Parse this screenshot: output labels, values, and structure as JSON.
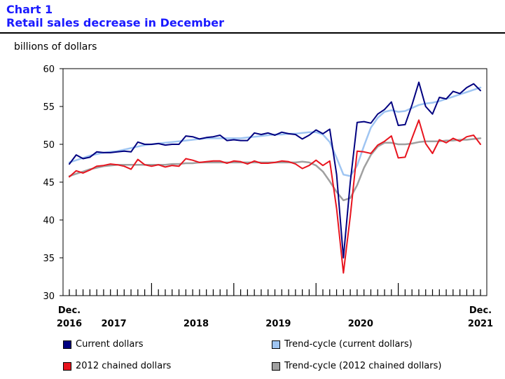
{
  "header": {
    "chart_number": "Chart 1",
    "title": "Retail sales decrease in December"
  },
  "chart_data": {
    "type": "line",
    "title": "Retail sales decrease in December",
    "ylabel": "billions of dollars",
    "xlabel": "",
    "ylim": [
      30,
      60
    ],
    "yticks": [
      30,
      35,
      40,
      45,
      50,
      55,
      60
    ],
    "grid": false,
    "legend_position": "bottom",
    "x_tick_labels": [
      {
        "line1": "Dec.",
        "line2": "2016",
        "month_index": 0
      },
      {
        "line1": "",
        "line2": "2017",
        "month_index": 6.5
      },
      {
        "line1": "",
        "line2": "2018",
        "month_index": 18.5
      },
      {
        "line1": "",
        "line2": "2019",
        "month_index": 30.5
      },
      {
        "line1": "",
        "line2": "2020",
        "month_index": 42.5
      },
      {
        "line1": "Dec.",
        "line2": "2021",
        "month_index": 60
      }
    ],
    "x_start": "2016-12",
    "x_end": "2021-12",
    "series": [
      {
        "name": "Current dollars",
        "color": "#000080",
        "width": 2,
        "values": [
          47.4,
          48.6,
          48.1,
          48.3,
          49.0,
          48.9,
          48.9,
          49.0,
          49.1,
          49.0,
          50.3,
          50.0,
          50.0,
          50.1,
          49.9,
          50.0,
          50.0,
          51.1,
          51.0,
          50.7,
          50.9,
          51.0,
          51.2,
          50.5,
          50.6,
          50.5,
          50.5,
          51.5,
          51.3,
          51.5,
          51.2,
          51.6,
          51.4,
          51.3,
          50.7,
          51.2,
          51.9,
          51.4,
          52.0,
          46.0,
          35.0,
          45.0,
          52.9,
          53.0,
          52.8,
          54.0,
          54.6,
          55.6,
          52.5,
          52.6,
          55.2,
          58.2,
          55.0,
          54.0,
          56.2,
          56.0,
          57.0,
          56.7,
          57.5,
          58.0,
          57.1
        ]
      },
      {
        "name": "Trend-cycle (current dollars)",
        "color": "#9fc5f2",
        "width": 2.5,
        "values": [
          47.6,
          47.9,
          48.2,
          48.5,
          48.7,
          48.9,
          49.0,
          49.1,
          49.3,
          49.5,
          49.7,
          49.9,
          50.0,
          50.1,
          50.2,
          50.3,
          50.4,
          50.5,
          50.6,
          50.7,
          50.8,
          50.8,
          50.8,
          50.8,
          50.8,
          50.8,
          50.9,
          51.0,
          51.1,
          51.2,
          51.3,
          51.3,
          51.4,
          51.4,
          51.5,
          51.6,
          51.6,
          51.3,
          50.3,
          48.2,
          46.0,
          45.8,
          47.2,
          49.8,
          52.2,
          53.5,
          54.3,
          54.5,
          54.3,
          54.4,
          54.8,
          55.2,
          55.4,
          55.5,
          55.7,
          56.0,
          56.3,
          56.6,
          56.9,
          57.2,
          57.5
        ]
      },
      {
        "name": "2012 chained dollars",
        "color": "#e8141e",
        "width": 2,
        "values": [
          45.7,
          46.5,
          46.2,
          46.6,
          47.1,
          47.2,
          47.4,
          47.3,
          47.1,
          46.7,
          48.0,
          47.3,
          47.1,
          47.3,
          47.0,
          47.2,
          47.1,
          48.1,
          47.9,
          47.6,
          47.7,
          47.8,
          47.8,
          47.5,
          47.8,
          47.7,
          47.4,
          47.8,
          47.5,
          47.5,
          47.6,
          47.8,
          47.7,
          47.4,
          46.8,
          47.2,
          47.9,
          47.2,
          47.8,
          41.5,
          33.0,
          40.5,
          49.1,
          49.0,
          48.8,
          49.9,
          50.4,
          51.1,
          48.2,
          48.3,
          50.8,
          53.2,
          50.1,
          48.8,
          50.6,
          50.2,
          50.8,
          50.4,
          51.0,
          51.2,
          50.0
        ]
      },
      {
        "name": "Trend-cycle (2012 chained dollars)",
        "color": "#a0a0a0",
        "width": 2.5,
        "values": [
          45.8,
          46.1,
          46.4,
          46.7,
          46.9,
          47.1,
          47.2,
          47.3,
          47.3,
          47.3,
          47.3,
          47.3,
          47.3,
          47.3,
          47.3,
          47.4,
          47.4,
          47.5,
          47.5,
          47.6,
          47.6,
          47.6,
          47.6,
          47.6,
          47.6,
          47.6,
          47.6,
          47.6,
          47.6,
          47.6,
          47.6,
          47.6,
          47.6,
          47.6,
          47.7,
          47.6,
          47.2,
          46.4,
          45.1,
          43.7,
          42.6,
          42.9,
          44.6,
          46.9,
          48.6,
          49.7,
          50.2,
          50.2,
          50.0,
          50.0,
          50.1,
          50.3,
          50.4,
          50.4,
          50.4,
          50.5,
          50.5,
          50.6,
          50.6,
          50.7,
          50.8
        ]
      }
    ]
  }
}
